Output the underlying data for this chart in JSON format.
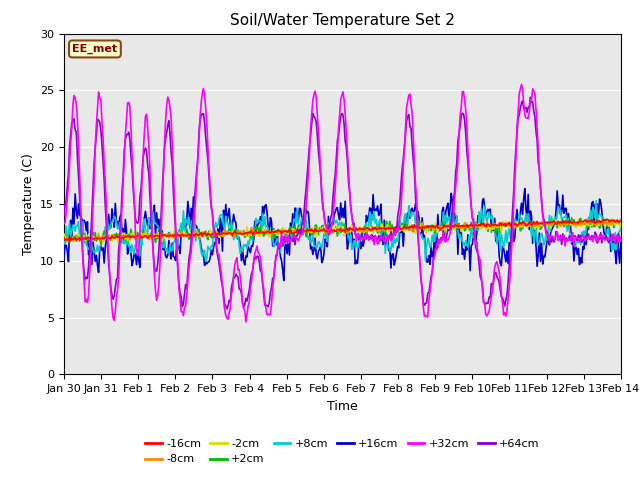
{
  "title": "Soil/Water Temperature Set 2",
  "xlabel": "Time",
  "ylabel": "Temperature (C)",
  "ylim": [
    0,
    30
  ],
  "yticks": [
    0,
    5,
    10,
    15,
    20,
    25,
    30
  ],
  "xtick_labels": [
    "Jan 30",
    "Jan 31",
    "Feb 1",
    "Feb 2",
    "Feb 3",
    "Feb 4",
    "Feb 5",
    "Feb 6",
    "Feb 7",
    "Feb 8",
    "Feb 9",
    "Feb 10",
    "Feb 11",
    "Feb 12",
    "Feb 13",
    "Feb 14"
  ],
  "bg_color": "#e8e8e8",
  "annotation_text": "EE_met",
  "annotation_bg": "#ffffcc",
  "annotation_border": "#8b4513",
  "series": {
    "-16cm": {
      "color": "#ff0000",
      "lw": 1.2
    },
    "-8cm": {
      "color": "#ff8800",
      "lw": 1.2
    },
    "-2cm": {
      "color": "#dddd00",
      "lw": 1.2
    },
    "+2cm": {
      "color": "#00bb00",
      "lw": 1.2
    },
    "+8cm": {
      "color": "#00cccc",
      "lw": 1.2
    },
    "+16cm": {
      "color": "#0000cc",
      "lw": 1.2
    },
    "+32cm": {
      "color": "#ff00ff",
      "lw": 1.2
    },
    "+64cm": {
      "color": "#8800cc",
      "lw": 1.2
    }
  },
  "legend_order": [
    "-16cm",
    "-8cm",
    "-2cm",
    "+2cm",
    "+8cm",
    "+16cm",
    "+32cm",
    "+64cm"
  ],
  "peak_days_32": [
    0.3,
    0.95,
    1.75,
    2.2,
    2.8,
    3.75,
    6.75,
    7.5,
    9.3,
    10.75,
    12.3,
    12.65
  ],
  "valley_days_32": [
    0.6,
    1.35,
    2.0,
    2.5,
    3.2,
    4.4,
    4.9,
    5.5,
    9.75,
    11.4,
    11.9
  ],
  "peak_days_64": [
    0.28,
    0.93,
    1.73,
    2.18,
    2.78,
    3.73,
    6.73,
    7.48,
    9.28,
    10.73,
    12.28,
    12.63
  ],
  "valley_days_64": [
    0.58,
    1.33,
    1.98,
    2.48,
    3.18,
    4.38,
    4.88,
    5.48,
    9.73,
    11.38,
    11.88
  ]
}
